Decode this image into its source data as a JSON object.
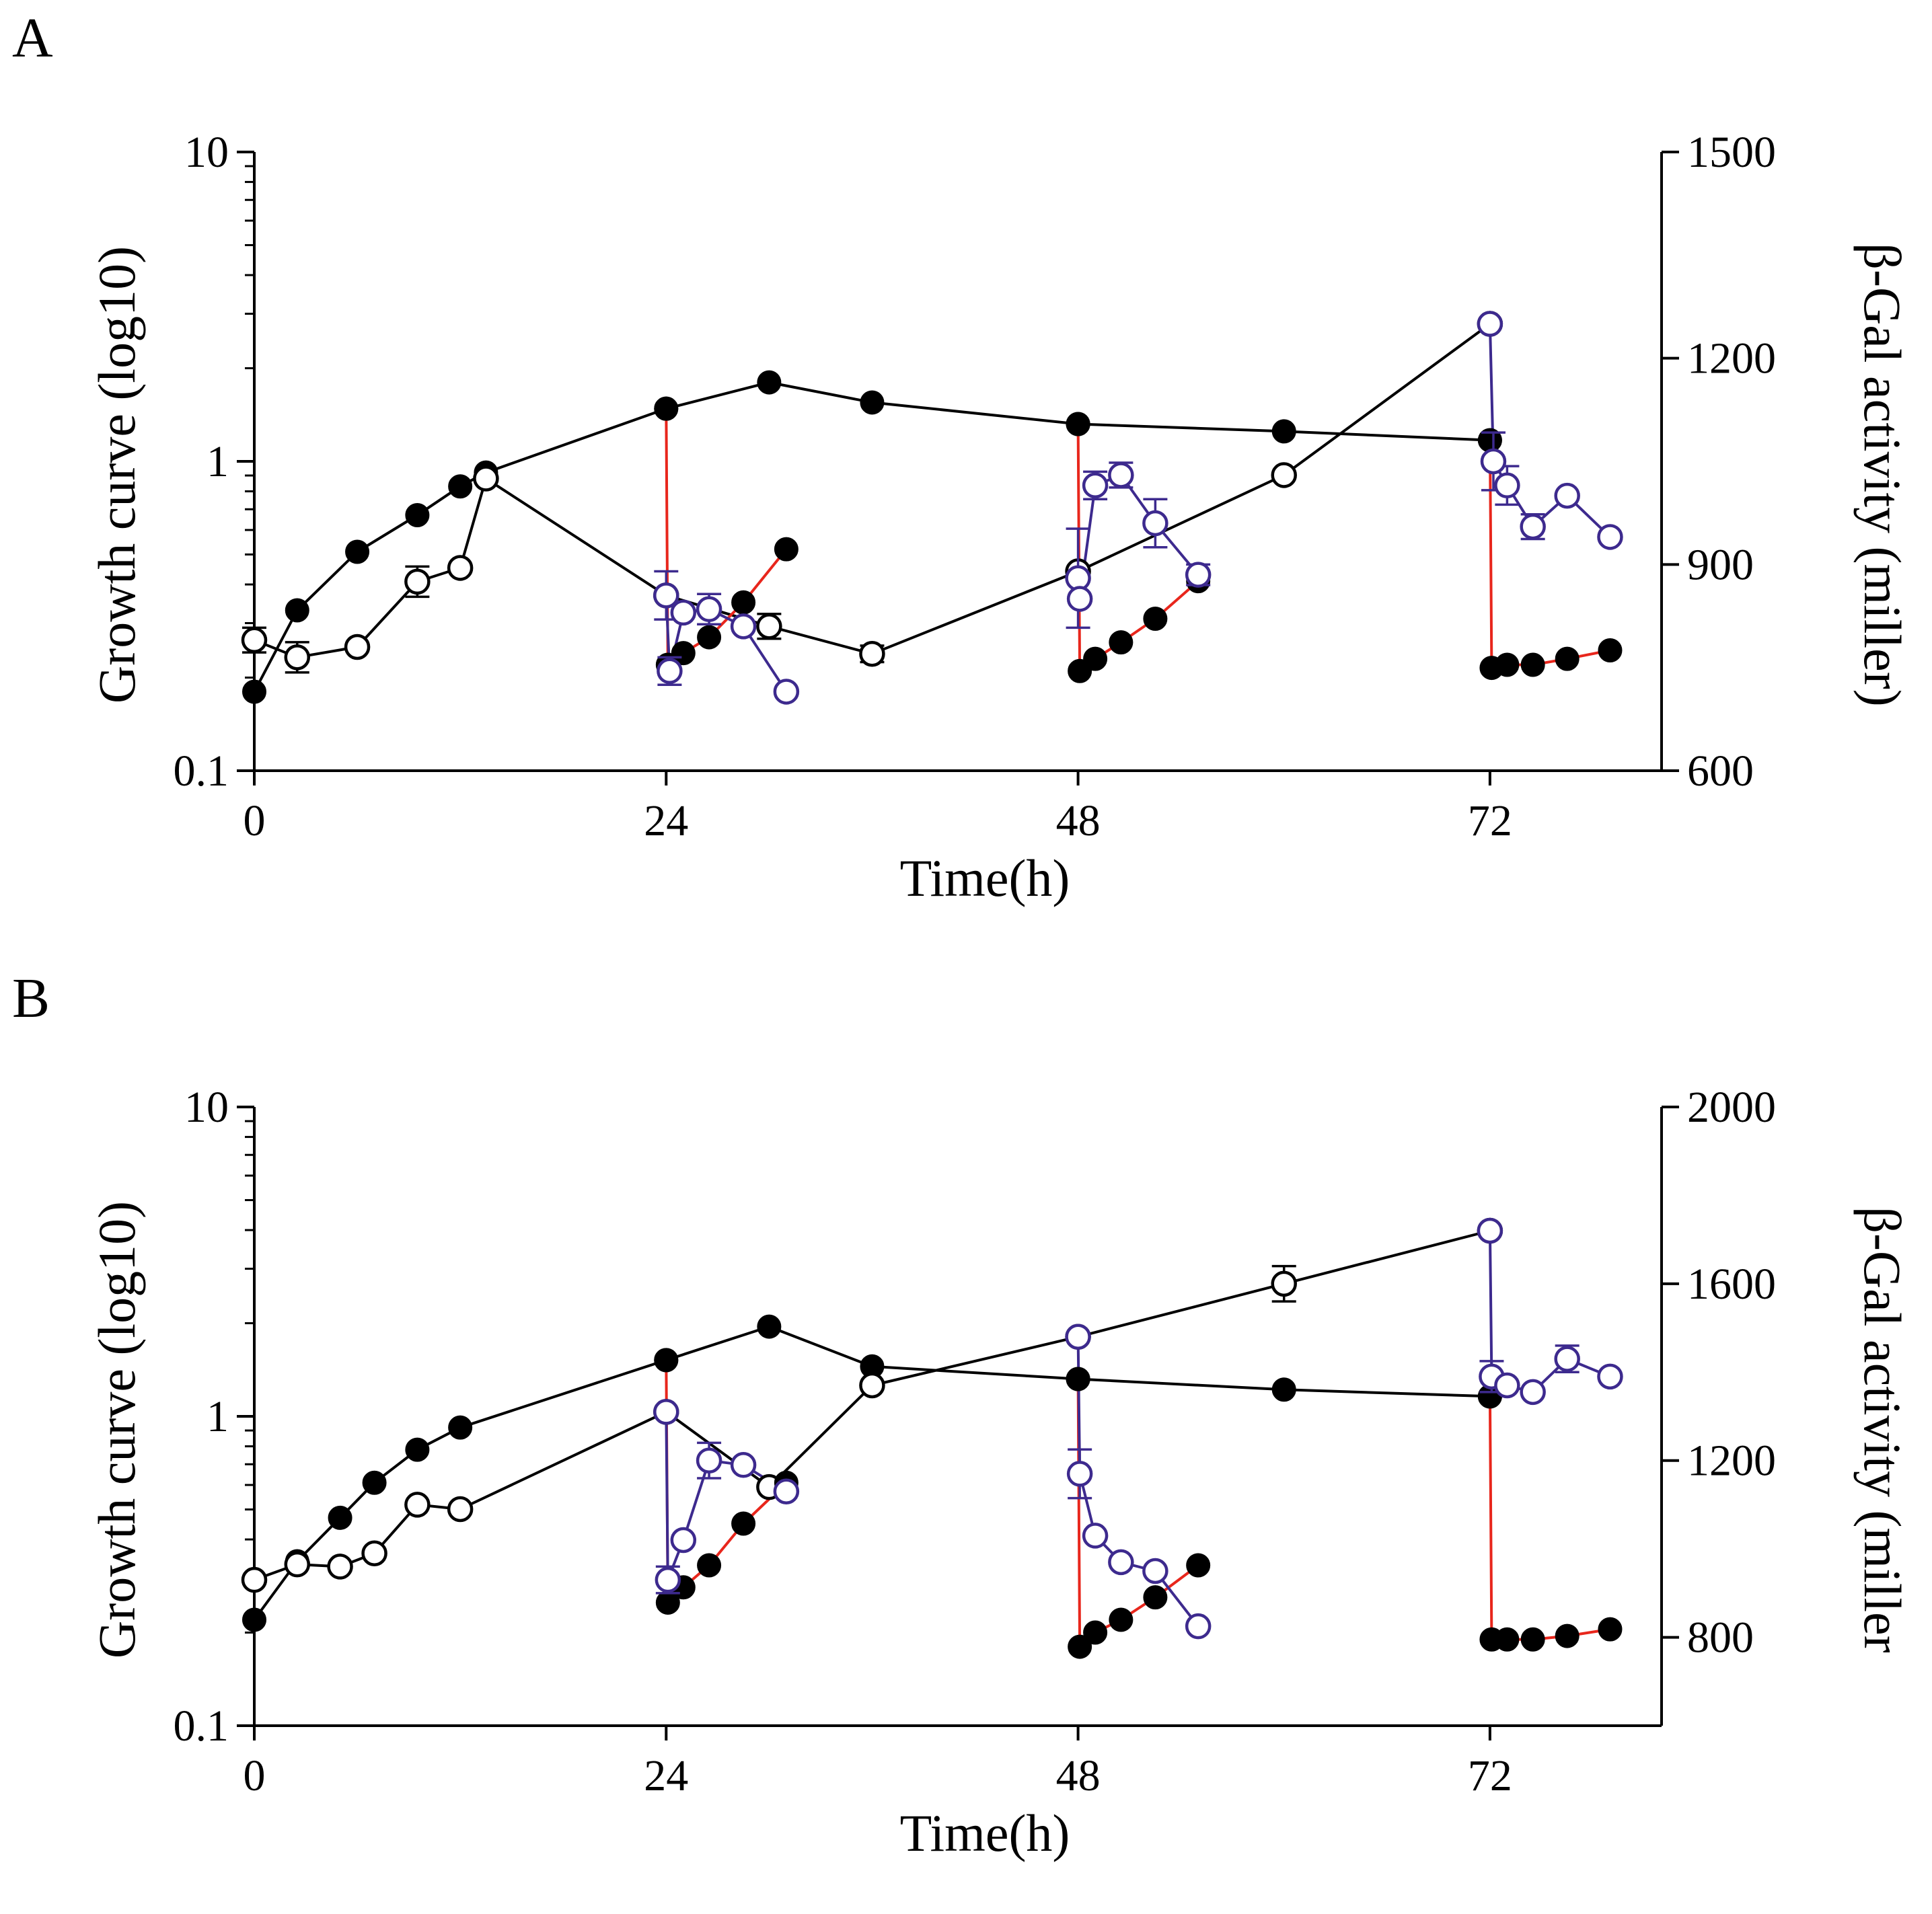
{
  "figure": {
    "type": "multi-panel line chart"
  },
  "chart_data": [
    {
      "type": "line",
      "panel_label": "A",
      "xlabel": "Time(h)",
      "ylabel_left": "Growth curve (log10)",
      "ylabel_right": "β-Gal activity (miller)",
      "x_ticks": [
        "0",
        "24",
        "48",
        "72"
      ],
      "y_left_ticks": [
        "0.1",
        "1",
        "10"
      ],
      "y_right_ticks": [
        "600",
        "900",
        "1200",
        "1500"
      ],
      "xlim": [
        0,
        79
      ],
      "ylim_left": [
        0.1,
        10
      ],
      "y_left_scale": "log",
      "ylim_right": [
        600,
        1500
      ],
      "colors": {
        "growth_main": "#000000",
        "growth_subculture": "#e8261c",
        "activity_subculture": "#3d2a8e",
        "activity_main": "#000000"
      },
      "series": [
        {
          "name": "Growth curve (main culture)",
          "axis": "left",
          "marker": "filled",
          "color": "#000000",
          "x": [
            0,
            2.5,
            6,
            9.5,
            12,
            13.5,
            24,
            30,
            36,
            48,
            60,
            72
          ],
          "y": [
            0.18,
            0.33,
            0.51,
            0.67,
            0.83,
            0.92,
            1.48,
            1.8,
            1.55,
            1.32,
            1.25,
            1.17
          ],
          "err": [
            0,
            0,
            0,
            0,
            0,
            0,
            0,
            0,
            0,
            0,
            0,
            0
          ]
        },
        {
          "name": "β-Gal activity (main culture)",
          "axis": "right",
          "marker": "open",
          "color": "#000000",
          "x": [
            0,
            2.5,
            6,
            9.5,
            12,
            13.5,
            24,
            30,
            36,
            48,
            60,
            72
          ],
          "y": [
            790,
            765,
            780,
            875,
            895,
            1025,
            855,
            810,
            770,
            890,
            1030,
            1250
          ],
          "err": [
            18,
            22,
            0,
            22,
            0,
            0,
            0,
            18,
            12,
            0,
            0,
            0
          ]
        },
        {
          "name": "Growth curve (subculture 24 h)",
          "axis": "left",
          "marker": "filled",
          "color": "#e8261c",
          "x": [
            24,
            24.1,
            25,
            26.5,
            28.5,
            31
          ],
          "y": [
            1.48,
            0.22,
            0.24,
            0.27,
            0.35,
            0.52
          ],
          "err": [
            0,
            0,
            0,
            0,
            0,
            0
          ]
        },
        {
          "name": "β-Gal activity (subculture 24 h)",
          "axis": "right",
          "marker": "open",
          "color": "#3d2a8e",
          "x": [
            24,
            24.2,
            25,
            26.5,
            28.5,
            31
          ],
          "y": [
            855,
            745,
            830,
            835,
            810,
            715
          ],
          "err": [
            35,
            20,
            0,
            22,
            0,
            0
          ]
        },
        {
          "name": "Growth curve (subculture 48 h)",
          "axis": "left",
          "marker": "filled",
          "color": "#e8261c",
          "x": [
            48,
            48.1,
            49,
            50.5,
            52.5,
            55
          ],
          "y": [
            1.32,
            0.21,
            0.23,
            0.26,
            0.31,
            0.41
          ],
          "err": [
            0,
            0,
            0,
            0,
            0,
            0
          ]
        },
        {
          "name": "β-Gal activity (subculture 48 h)",
          "axis": "right",
          "marker": "open",
          "color": "#3d2a8e",
          "x": [
            48,
            48.1,
            49,
            50.5,
            52.5,
            55
          ],
          "y": [
            880,
            850,
            1015,
            1030,
            960,
            885
          ],
          "err": [
            72,
            0,
            20,
            18,
            35,
            15
          ]
        },
        {
          "name": "Growth curve (subculture 72 h)",
          "axis": "left",
          "marker": "filled",
          "color": "#e8261c",
          "x": [
            72,
            72.1,
            73,
            74.5,
            76.5,
            79
          ],
          "y": [
            1.17,
            0.215,
            0.22,
            0.22,
            0.23,
            0.245
          ],
          "err": [
            0,
            0,
            0,
            0,
            0,
            0
          ]
        },
        {
          "name": "β-Gal activity (subculture 72 h)",
          "axis": "right",
          "marker": "open",
          "color": "#3d2a8e",
          "x": [
            72,
            72.2,
            73,
            74.5,
            76.5,
            79
          ],
          "y": [
            1250,
            1050,
            1015,
            955,
            1000,
            940
          ],
          "err": [
            0,
            42,
            28,
            18,
            0,
            0
          ]
        }
      ]
    },
    {
      "type": "line",
      "panel_label": "B",
      "xlabel": "Time(h)",
      "ylabel_left": "Growth curve (log10)",
      "ylabel_right": "β-Gal activity (miller",
      "x_ticks": [
        "0",
        "24",
        "48",
        "72"
      ],
      "y_left_ticks": [
        "0.1",
        "1",
        "10"
      ],
      "y_right_ticks": [
        "800",
        "1200",
        "1600",
        "2000"
      ],
      "xlim": [
        0,
        79
      ],
      "ylim_left": [
        0.1,
        10
      ],
      "y_left_scale": "log",
      "ylim_right": [
        600,
        2000
      ],
      "colors": {
        "growth_main": "#000000",
        "growth_subculture": "#e8261c",
        "activity_subculture": "#3d2a8e",
        "activity_main": "#000000"
      },
      "series": [
        {
          "name": "Growth curve (main culture)",
          "axis": "left",
          "marker": "filled",
          "color": "#000000",
          "x": [
            0,
            2.5,
            5,
            7,
            9.5,
            12,
            24,
            30,
            36,
            48,
            60,
            72
          ],
          "y": [
            0.22,
            0.34,
            0.47,
            0.61,
            0.78,
            0.92,
            1.52,
            1.95,
            1.45,
            1.32,
            1.22,
            1.16
          ],
          "err": [
            0,
            0,
            0,
            0,
            0,
            0,
            0,
            0,
            0,
            0,
            0,
            0
          ]
        },
        {
          "name": "β-Gal activity (main culture)",
          "axis": "right",
          "marker": "open",
          "color": "#000000",
          "x": [
            0,
            2.5,
            5,
            7,
            9.5,
            12,
            24,
            30,
            36,
            48,
            60,
            72
          ],
          "y": [
            930,
            965,
            960,
            990,
            1100,
            1090,
            1310,
            1140,
            1370,
            1480,
            1600,
            1720
          ],
          "err": [
            0,
            0,
            0,
            0,
            0,
            0,
            0,
            0,
            0,
            0,
            40,
            0
          ]
        },
        {
          "name": "Growth curve (subculture 24 h)",
          "axis": "left",
          "marker": "filled",
          "color": "#e8261c",
          "x": [
            24,
            24.1,
            25,
            26.5,
            28.5,
            31
          ],
          "y": [
            1.52,
            0.25,
            0.28,
            0.33,
            0.45,
            0.61
          ],
          "err": [
            0,
            0,
            0,
            0,
            0,
            0
          ]
        },
        {
          "name": "β-Gal activity (subculture 24 h)",
          "axis": "right",
          "marker": "open",
          "color": "#3d2a8e",
          "x": [
            24,
            24.1,
            25,
            26.5,
            28.5,
            31
          ],
          "y": [
            1310,
            930,
            1020,
            1200,
            1190,
            1130
          ],
          "err": [
            0,
            30,
            0,
            40,
            0,
            0
          ]
        },
        {
          "name": "Growth curve (subculture 48 h)",
          "axis": "left",
          "marker": "filled",
          "color": "#e8261c",
          "x": [
            48,
            48.1,
            49,
            50.5,
            52.5,
            55
          ],
          "y": [
            1.32,
            0.18,
            0.2,
            0.22,
            0.26,
            0.33
          ],
          "err": [
            0,
            0,
            0,
            0,
            0,
            0
          ]
        },
        {
          "name": "β-Gal activity (subculture 48 h)",
          "axis": "right",
          "marker": "open",
          "color": "#3d2a8e",
          "x": [
            48,
            48.1,
            49,
            50.5,
            52.5,
            55
          ],
          "y": [
            1480,
            1170,
            1030,
            970,
            950,
            825
          ],
          "err": [
            0,
            55,
            0,
            0,
            0,
            0
          ]
        },
        {
          "name": "Growth curve (subculture 72 h)",
          "axis": "left",
          "marker": "filled",
          "color": "#e8261c",
          "x": [
            72,
            72.1,
            73,
            74.5,
            76.5,
            79
          ],
          "y": [
            1.16,
            0.19,
            0.19,
            0.19,
            0.195,
            0.205
          ],
          "err": [
            0,
            0,
            0,
            0,
            0,
            0
          ]
        },
        {
          "name": "β-Gal activity (subculture 72 h)",
          "axis": "right",
          "marker": "open",
          "color": "#3d2a8e",
          "x": [
            72,
            72.1,
            73,
            74.5,
            76.5,
            79
          ],
          "y": [
            1720,
            1390,
            1370,
            1355,
            1430,
            1390
          ],
          "err": [
            0,
            35,
            0,
            0,
            30,
            0
          ]
        }
      ]
    }
  ]
}
